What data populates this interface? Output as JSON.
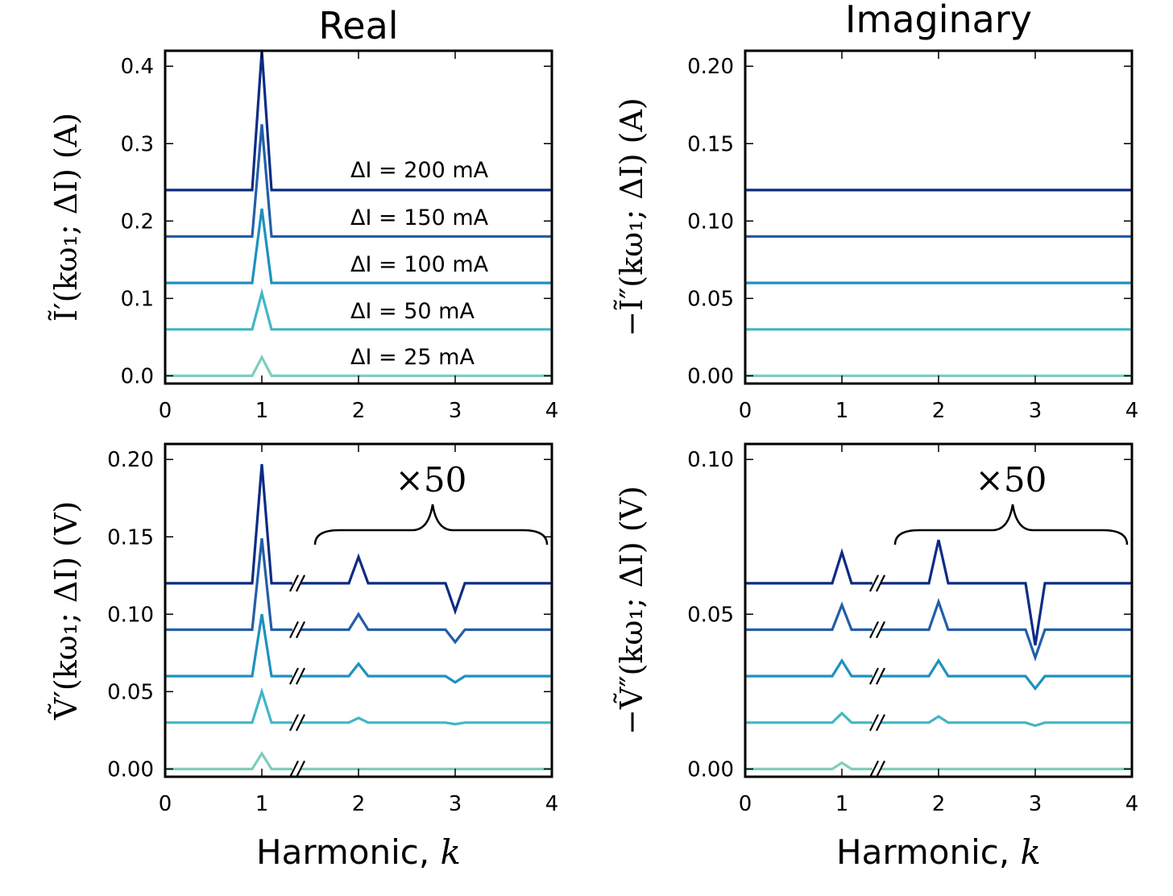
{
  "figure": {
    "col_titles": [
      "Real",
      "Imaginary"
    ],
    "xlabel_text": "Harmonic, ",
    "xlabel_var": "k"
  },
  "colors": {
    "25": "#7fcdbb",
    "50": "#41b6c4",
    "100": "#1d91c0",
    "150": "#225ea8",
    "200": "#0c2c84",
    "axes": "#000000"
  },
  "chart_data": [
    {
      "type": "line",
      "title": "Real",
      "ylabel": "Ĩ′(kω₁; ΔI)  (A)",
      "xlim": [
        0,
        4
      ],
      "ylim": [
        -0.01,
        0.42
      ],
      "xticks": [
        0,
        1,
        2,
        3,
        4
      ],
      "xtick_labels": [
        "0",
        "1",
        "2",
        "3",
        "4"
      ],
      "yticks": [
        0.0,
        0.1,
        0.2,
        0.3,
        0.4
      ],
      "ytick_labels": [
        "0.0",
        "0.1",
        "0.2",
        "0.3",
        "0.4"
      ],
      "series": [
        {
          "name": "ΔI = 25 mA",
          "color_key": "25",
          "x": [
            0,
            0.9,
            1,
            1.1,
            4
          ],
          "y": [
            0.0,
            0.0,
            0.024,
            0.0,
            0.0
          ]
        },
        {
          "name": "ΔI = 50 mA",
          "color_key": "50",
          "x": [
            0,
            0.9,
            1,
            1.1,
            4
          ],
          "y": [
            0.06,
            0.06,
            0.107,
            0.06,
            0.06
          ]
        },
        {
          "name": "ΔI = 100 mA",
          "color_key": "100",
          "x": [
            0,
            0.9,
            1,
            1.1,
            4
          ],
          "y": [
            0.12,
            0.12,
            0.216,
            0.12,
            0.12
          ]
        },
        {
          "name": "ΔI = 150 mA",
          "color_key": "150",
          "x": [
            0,
            0.9,
            1,
            1.1,
            4
          ],
          "y": [
            0.18,
            0.18,
            0.325,
            0.18,
            0.18
          ]
        },
        {
          "name": "ΔI = 200 mA",
          "color_key": "200",
          "x": [
            0,
            0.9,
            1,
            1.1,
            4
          ],
          "y": [
            0.24,
            0.24,
            0.42,
            0.24,
            0.24
          ]
        }
      ]
    },
    {
      "type": "line",
      "title": "Imaginary",
      "ylabel": "−Ĩ″(kω₁; ΔI)  (A)",
      "xlim": [
        0,
        4
      ],
      "ylim": [
        -0.005,
        0.21
      ],
      "xticks": [
        0,
        1,
        2,
        3,
        4
      ],
      "xtick_labels": [
        "0",
        "1",
        "2",
        "3",
        "4"
      ],
      "yticks": [
        0.0,
        0.05,
        0.1,
        0.15,
        0.2
      ],
      "ytick_labels": [
        "0.00",
        "0.05",
        "0.10",
        "0.15",
        "0.20"
      ],
      "series": [
        {
          "name": "ΔI = 25 mA",
          "color_key": "25",
          "x": [
            0,
            4
          ],
          "y": [
            0.0,
            0.0
          ]
        },
        {
          "name": "ΔI = 50 mA",
          "color_key": "50",
          "x": [
            0,
            4
          ],
          "y": [
            0.03,
            0.03
          ]
        },
        {
          "name": "ΔI = 100 mA",
          "color_key": "100",
          "x": [
            0,
            4
          ],
          "y": [
            0.06,
            0.06
          ]
        },
        {
          "name": "ΔI = 150 mA",
          "color_key": "150",
          "x": [
            0,
            4
          ],
          "y": [
            0.09,
            0.09
          ]
        },
        {
          "name": "ΔI = 200 mA",
          "color_key": "200",
          "x": [
            0,
            4
          ],
          "y": [
            0.12,
            0.12
          ]
        }
      ]
    },
    {
      "type": "line",
      "ylabel": "Ṽ′(kω₁; ΔI)  (V)",
      "xlim": [
        0,
        4
      ],
      "ylim": [
        -0.005,
        0.21
      ],
      "xticks": [
        0,
        1,
        2,
        3,
        4
      ],
      "xtick_labels": [
        "0",
        "1",
        "2",
        "3",
        "4"
      ],
      "yticks": [
        0.0,
        0.05,
        0.1,
        0.15,
        0.2
      ],
      "ytick_labels": [
        "0.00",
        "0.05",
        "0.10",
        "0.15",
        "0.20"
      ],
      "annotation": "×50",
      "brace_x": [
        1.55,
        3.95
      ],
      "axis_break_x": 1.5,
      "series": [
        {
          "name": "ΔI = 25 mA",
          "color_key": "25",
          "x": [
            0,
            0.9,
            1,
            1.1,
            1.5,
            1.9,
            2,
            2.1,
            2.9,
            3,
            3.1,
            4
          ],
          "y": [
            0.0,
            0.0,
            0.01,
            0.0,
            0.0,
            0.0,
            0.0,
            0.0,
            0.0,
            0.0,
            0.0,
            0.0
          ]
        },
        {
          "name": "ΔI = 50 mA",
          "color_key": "50",
          "x": [
            0,
            0.9,
            1,
            1.1,
            1.5,
            1.9,
            2,
            2.1,
            2.9,
            3,
            3.1,
            4
          ],
          "y": [
            0.03,
            0.03,
            0.05,
            0.03,
            0.03,
            0.03,
            0.033,
            0.03,
            0.03,
            0.029,
            0.03,
            0.03
          ]
        },
        {
          "name": "ΔI = 100 mA",
          "color_key": "100",
          "x": [
            0,
            0.9,
            1,
            1.1,
            1.5,
            1.9,
            2,
            2.1,
            2.9,
            3,
            3.1,
            4
          ],
          "y": [
            0.06,
            0.06,
            0.1,
            0.06,
            0.06,
            0.06,
            0.068,
            0.06,
            0.06,
            0.056,
            0.06,
            0.06
          ]
        },
        {
          "name": "ΔI = 150 mA",
          "color_key": "150",
          "x": [
            0,
            0.9,
            1,
            1.1,
            1.5,
            1.9,
            2,
            2.1,
            2.9,
            3,
            3.1,
            4
          ],
          "y": [
            0.09,
            0.09,
            0.149,
            0.09,
            0.09,
            0.09,
            0.1,
            0.09,
            0.09,
            0.082,
            0.09,
            0.09
          ]
        },
        {
          "name": "ΔI = 200 mA",
          "color_key": "200",
          "x": [
            0,
            0.9,
            1,
            1.1,
            1.5,
            1.9,
            2,
            2.1,
            2.9,
            3,
            3.1,
            4
          ],
          "y": [
            0.12,
            0.12,
            0.197,
            0.12,
            0.12,
            0.12,
            0.137,
            0.12,
            0.12,
            0.102,
            0.12,
            0.12
          ]
        }
      ]
    },
    {
      "type": "line",
      "ylabel": "−Ṽ″(kω₁; ΔI)  (V)",
      "xlim": [
        0,
        4
      ],
      "ylim": [
        -0.0025,
        0.105
      ],
      "xticks": [
        0,
        1,
        2,
        3,
        4
      ],
      "xtick_labels": [
        "0",
        "1",
        "2",
        "3",
        "4"
      ],
      "yticks": [
        0.0,
        0.05,
        0.1
      ],
      "ytick_labels": [
        "0.00",
        "0.05",
        "0.10"
      ],
      "annotation": "×50",
      "brace_x": [
        1.55,
        3.95
      ],
      "axis_break_x": 1.5,
      "series": [
        {
          "name": "ΔI = 25 mA",
          "color_key": "25",
          "x": [
            0,
            0.9,
            1,
            1.1,
            1.5,
            1.9,
            2,
            2.1,
            2.9,
            3,
            3.1,
            4
          ],
          "y": [
            0.0,
            0.0,
            0.002,
            0.0,
            0.0,
            0.0,
            0.0,
            0.0,
            0.0,
            0.0,
            0.0,
            0.0
          ]
        },
        {
          "name": "ΔI = 50 mA",
          "color_key": "50",
          "x": [
            0,
            0.9,
            1,
            1.1,
            1.5,
            1.9,
            2,
            2.1,
            2.9,
            3,
            3.1,
            4
          ],
          "y": [
            0.015,
            0.015,
            0.018,
            0.015,
            0.015,
            0.015,
            0.017,
            0.015,
            0.015,
            0.014,
            0.015,
            0.015
          ]
        },
        {
          "name": "ΔI = 100 mA",
          "color_key": "100",
          "x": [
            0,
            0.9,
            1,
            1.1,
            1.5,
            1.9,
            2,
            2.1,
            2.9,
            3,
            3.1,
            4
          ],
          "y": [
            0.03,
            0.03,
            0.035,
            0.03,
            0.03,
            0.03,
            0.035,
            0.03,
            0.03,
            0.026,
            0.03,
            0.03
          ]
        },
        {
          "name": "ΔI = 150 mA",
          "color_key": "150",
          "x": [
            0,
            0.9,
            1,
            1.1,
            1.5,
            1.9,
            2,
            2.1,
            2.9,
            3,
            3.1,
            4
          ],
          "y": [
            0.045,
            0.045,
            0.053,
            0.045,
            0.045,
            0.045,
            0.054,
            0.045,
            0.045,
            0.036,
            0.045,
            0.045
          ]
        },
        {
          "name": "ΔI = 200 mA",
          "color_key": "200",
          "x": [
            0,
            0.9,
            1,
            1.1,
            1.5,
            1.9,
            2,
            2.1,
            2.9,
            3,
            3.1,
            4
          ],
          "y": [
            0.06,
            0.06,
            0.07,
            0.06,
            0.06,
            0.06,
            0.074,
            0.06,
            0.06,
            0.04,
            0.06,
            0.06
          ]
        }
      ]
    }
  ]
}
